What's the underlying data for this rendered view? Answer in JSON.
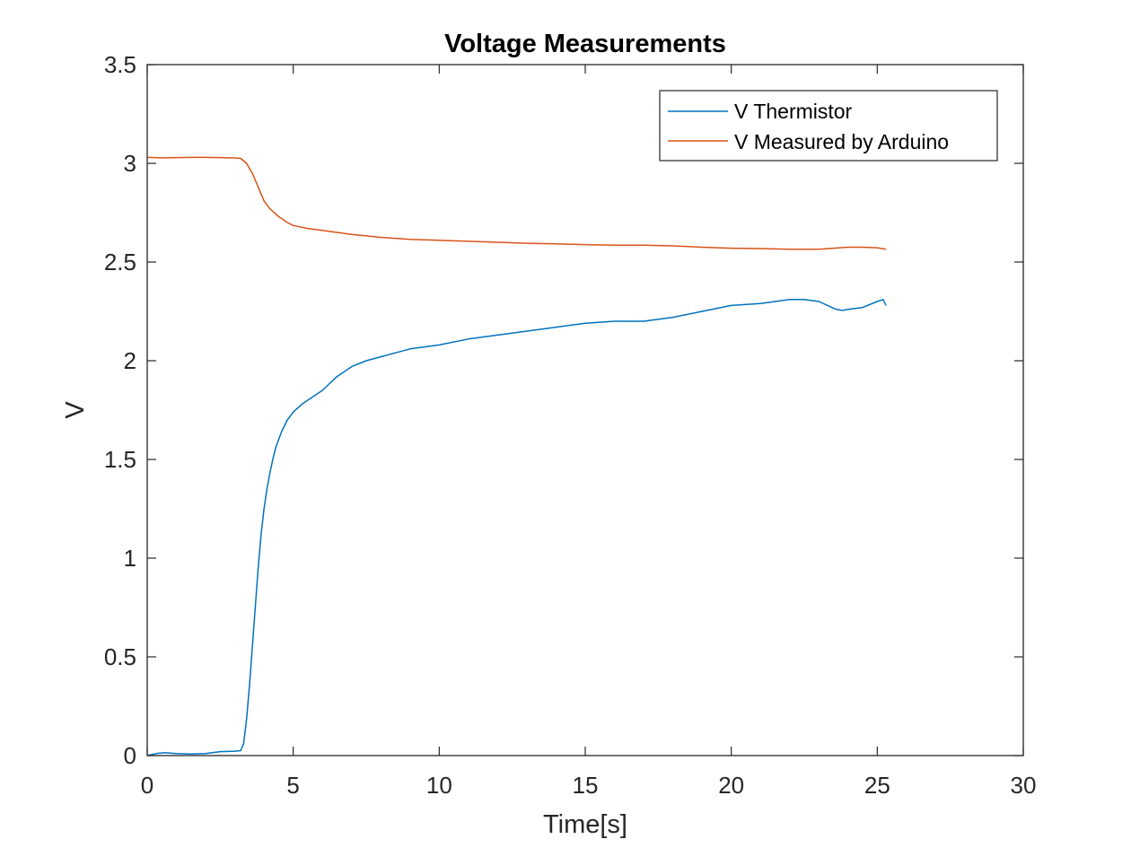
{
  "chart_data": {
    "type": "line",
    "title": "Voltage Measurements",
    "xlabel": "Time[s]",
    "ylabel": "V",
    "xlim": [
      0,
      30
    ],
    "ylim": [
      0,
      3.5
    ],
    "xticks": [
      0,
      5,
      10,
      15,
      20,
      25,
      30
    ],
    "yticks": [
      0,
      0.5,
      1,
      1.5,
      2,
      2.5,
      3,
      3.5
    ],
    "xtick_labels": [
      "0",
      "5",
      "10",
      "15",
      "20",
      "25",
      "30"
    ],
    "ytick_labels": [
      "0",
      "0.5",
      "1",
      "1.5",
      "2",
      "2.5",
      "3",
      "3.5"
    ],
    "grid": false,
    "legend_position": "top-right",
    "series": [
      {
        "name": "V Thermistor",
        "color": "#0072BD",
        "x": [
          0,
          0.3,
          0.6,
          1.0,
          1.5,
          2.0,
          2.5,
          3.0,
          3.2,
          3.3,
          3.4,
          3.5,
          3.6,
          3.7,
          3.8,
          3.9,
          4.0,
          4.1,
          4.2,
          4.3,
          4.4,
          4.6,
          4.8,
          5.0,
          5.3,
          5.6,
          6.0,
          6.5,
          7.0,
          7.5,
          8.0,
          8.5,
          9.0,
          9.5,
          10.0,
          11.0,
          12.0,
          13.0,
          14.0,
          15.0,
          16.0,
          17.0,
          18.0,
          19.0,
          20.0,
          21.0,
          22.0,
          22.5,
          23.0,
          23.3,
          23.6,
          23.8,
          24.0,
          24.5,
          25.0,
          25.2,
          25.3
        ],
        "y": [
          0.0,
          0.01,
          0.015,
          0.01,
          0.008,
          0.01,
          0.02,
          0.022,
          0.025,
          0.06,
          0.18,
          0.35,
          0.55,
          0.75,
          0.95,
          1.12,
          1.25,
          1.35,
          1.43,
          1.5,
          1.56,
          1.64,
          1.7,
          1.74,
          1.78,
          1.81,
          1.85,
          1.92,
          1.97,
          2.0,
          2.02,
          2.04,
          2.06,
          2.07,
          2.08,
          2.11,
          2.13,
          2.15,
          2.17,
          2.19,
          2.2,
          2.2,
          2.22,
          2.25,
          2.28,
          2.29,
          2.31,
          2.31,
          2.3,
          2.28,
          2.26,
          2.255,
          2.26,
          2.27,
          2.3,
          2.31,
          2.28
        ]
      },
      {
        "name": "V Measured by Arduino",
        "color": "#D95319",
        "x": [
          0,
          0.5,
          1.0,
          1.5,
          2.0,
          2.5,
          3.0,
          3.2,
          3.4,
          3.6,
          3.8,
          4.0,
          4.2,
          4.5,
          4.8,
          5.0,
          5.5,
          6.0,
          6.5,
          7.0,
          8.0,
          9.0,
          10.0,
          11.0,
          12.0,
          13.0,
          14.0,
          15.0,
          16.0,
          17.0,
          18.0,
          19.0,
          20.0,
          21.0,
          22.0,
          23.0,
          23.5,
          24.0,
          24.5,
          25.0,
          25.3
        ],
        "y": [
          3.03,
          3.028,
          3.029,
          3.03,
          3.03,
          3.029,
          3.027,
          3.025,
          3.0,
          2.95,
          2.88,
          2.81,
          2.77,
          2.73,
          2.7,
          2.685,
          2.67,
          2.66,
          2.65,
          2.64,
          2.625,
          2.615,
          2.61,
          2.605,
          2.6,
          2.595,
          2.592,
          2.588,
          2.585,
          2.585,
          2.582,
          2.575,
          2.57,
          2.568,
          2.565,
          2.565,
          2.57,
          2.575,
          2.575,
          2.572,
          2.565
        ]
      }
    ]
  }
}
